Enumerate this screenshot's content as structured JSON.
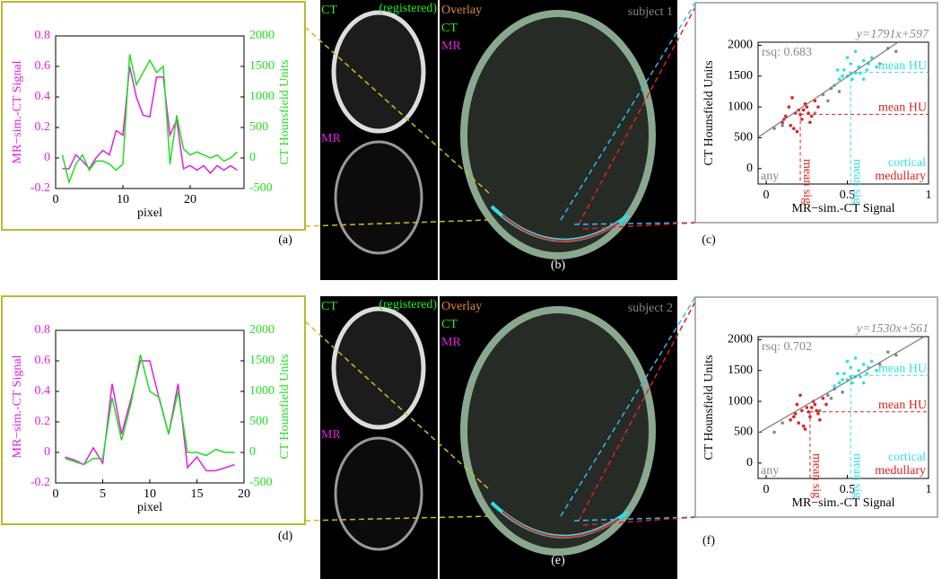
{
  "chart_data": [
    {
      "type": "line",
      "panel_label": "(a)",
      "x_label": "pixel",
      "y_label": "MR−sim.-CT Signal",
      "y2_label": "CT Hounsfield Units",
      "x": [
        1,
        2,
        3,
        4,
        5,
        6,
        7,
        8,
        9,
        10,
        11,
        12,
        13,
        14,
        15,
        16,
        17,
        18,
        19,
        20,
        21,
        22,
        23,
        24,
        25,
        26,
        27
      ],
      "xlim": [
        0,
        28
      ],
      "xticks": [
        0,
        10,
        20
      ],
      "ylim": [
        -0.2,
        0.8
      ],
      "yticks": [
        -0.2,
        0,
        0.2,
        0.4,
        0.6,
        0.8
      ],
      "y2lim": [
        -500,
        2000
      ],
      "y2ticks": [
        -500,
        0,
        500,
        1000,
        1500,
        2000
      ],
      "series": [
        {
          "color": "#e020e0",
          "values": [
            -0.07,
            -0.07,
            0.02,
            -0.02,
            -0.07,
            0.0,
            0.05,
            0.02,
            0.18,
            0.15,
            0.6,
            0.4,
            0.28,
            0.27,
            0.53,
            0.53,
            0.15,
            0.25,
            -0.07,
            -0.05,
            -0.08,
            -0.05,
            -0.1,
            -0.05,
            -0.08,
            -0.05,
            -0.08
          ]
        },
        {
          "color": "#22dd22",
          "axis": "y2",
          "values": [
            50,
            -400,
            -100,
            50,
            -200,
            -50,
            -50,
            -100,
            -200,
            -100,
            1700,
            1200,
            1400,
            1600,
            1400,
            1500,
            -100,
            700,
            150,
            50,
            100,
            50,
            0,
            50,
            -50,
            0,
            100
          ]
        }
      ]
    },
    {
      "type": "scatter",
      "panel_label": "(c)",
      "x_label": "MR−sim.-CT Signal",
      "y_label": "CT Hounsfield Units",
      "equation": "y=1791x+597",
      "rsq": "rsq: 0.683",
      "fit": {
        "slope": 1791,
        "intercept": 597
      },
      "xlim": [
        -0.05,
        1.0
      ],
      "xticks": [
        0,
        0.5,
        1
      ],
      "ylim": [
        -250,
        2050
      ],
      "yticks": [
        0,
        500,
        1000,
        1500,
        2000
      ],
      "series": [
        {
          "name": "cortical",
          "color": "#33dddd",
          "mean_hu": 1560,
          "mean_hu_label": "mean HU",
          "mean_sig": 0.52,
          "mean_sig_label": "mean sig",
          "x": [
            0.45,
            0.48,
            0.5,
            0.52,
            0.55,
            0.57,
            0.6,
            0.62,
            0.65,
            0.42,
            0.47,
            0.53,
            0.58,
            0.63,
            0.5,
            0.55,
            0.6,
            0.44,
            0.68,
            0.52
          ],
          "y": [
            1450,
            1600,
            1500,
            1700,
            1550,
            1650,
            1750,
            1600,
            1800,
            1350,
            1500,
            1450,
            1550,
            1700,
            1800,
            1900,
            1450,
            1600,
            1650,
            1550
          ]
        },
        {
          "name": "medullary",
          "color": "#dd2222",
          "mean_hu": 880,
          "mean_hu_label": "mean HU",
          "mean_sig": 0.21,
          "mean_sig_label": "mean sig",
          "x": [
            0.1,
            0.12,
            0.15,
            0.18,
            0.2,
            0.22,
            0.25,
            0.28,
            0.3,
            0.14,
            0.17,
            0.21,
            0.24,
            0.27,
            0.19,
            0.23,
            0.16,
            0.26,
            0.32,
            0.11
          ],
          "y": [
            750,
            850,
            700,
            900,
            950,
            800,
            1000,
            850,
            1100,
            1000,
            650,
            880,
            1050,
            750,
            600,
            950,
            1150,
            900,
            1000,
            800
          ]
        },
        {
          "name": "any",
          "color": "#888888",
          "x": [
            0.05,
            0.1,
            0.35,
            0.38,
            0.4,
            0.7,
            0.75,
            0.8,
            0.3,
            0.45
          ],
          "y": [
            650,
            700,
            1200,
            1100,
            1300,
            1700,
            1950,
            1900,
            900,
            1250
          ]
        }
      ]
    },
    {
      "type": "line",
      "panel_label": "(d)",
      "x_label": "pixel",
      "y_label": "MR−sim.-CT Signal",
      "y2_label": "CT Hounsfield Units",
      "x": [
        1,
        2,
        3,
        4,
        5,
        6,
        7,
        8,
        9,
        10,
        11,
        12,
        13,
        14,
        15,
        16,
        17,
        18,
        19
      ],
      "xlim": [
        0,
        20
      ],
      "xticks": [
        0,
        5,
        10,
        15,
        20
      ],
      "ylim": [
        -0.2,
        0.8
      ],
      "yticks": [
        -0.2,
        0,
        0.2,
        0.4,
        0.6,
        0.8
      ],
      "y2lim": [
        -500,
        2000
      ],
      "y2ticks": [
        -500,
        0,
        500,
        1000,
        1500,
        2000
      ],
      "series": [
        {
          "color": "#e020e0",
          "values": [
            -0.03,
            -0.05,
            -0.08,
            0.03,
            -0.07,
            0.45,
            0.12,
            0.35,
            0.6,
            0.6,
            0.35,
            0.12,
            0.45,
            -0.1,
            -0.03,
            -0.12,
            -0.12,
            -0.1,
            -0.08
          ]
        },
        {
          "color": "#22dd22",
          "axis": "y2",
          "values": [
            -100,
            -150,
            -200,
            -100,
            -100,
            900,
            200,
            800,
            1600,
            1000,
            900,
            300,
            1000,
            0,
            0,
            -50,
            50,
            0,
            0
          ]
        }
      ]
    },
    {
      "type": "scatter",
      "panel_label": "(f)",
      "x_label": "MR−sim.-CT Signal",
      "y_label": "CT Hounsfield Units",
      "equation": "y=1530x+561",
      "rsq": "rsq: 0.702",
      "fit": {
        "slope": 1530,
        "intercept": 561
      },
      "xlim": [
        -0.05,
        1.0
      ],
      "xticks": [
        0,
        0.5,
        1
      ],
      "ylim": [
        -250,
        2050
      ],
      "yticks": [
        0,
        500,
        1000,
        1500,
        2000
      ],
      "series": [
        {
          "name": "cortical",
          "color": "#33dddd",
          "mean_hu": 1420,
          "mean_hu_label": "mean HU",
          "mean_sig": 0.52,
          "mean_sig_label": "mean sig",
          "x": [
            0.45,
            0.48,
            0.5,
            0.52,
            0.55,
            0.57,
            0.6,
            0.62,
            0.65,
            0.42,
            0.47,
            0.53,
            0.58,
            0.63,
            0.5,
            0.55,
            0.6,
            0.44,
            0.68,
            0.52
          ],
          "y": [
            1300,
            1450,
            1350,
            1550,
            1400,
            1500,
            1600,
            1450,
            1650,
            1250,
            1350,
            1300,
            1400,
            1550,
            1650,
            1700,
            1300,
            1450,
            1500,
            1400
          ]
        },
        {
          "name": "medullary",
          "color": "#dd2222",
          "mean_hu": 830,
          "mean_hu_label": "mean HU",
          "mean_sig": 0.27,
          "mean_sig_label": "mean sig",
          "x": [
            0.15,
            0.18,
            0.2,
            0.22,
            0.25,
            0.27,
            0.3,
            0.32,
            0.35,
            0.19,
            0.23,
            0.26,
            0.29,
            0.33,
            0.24,
            0.28,
            0.21,
            0.31,
            0.37,
            0.17
          ],
          "y": [
            700,
            800,
            650,
            850,
            900,
            750,
            950,
            800,
            1050,
            950,
            600,
            830,
            1000,
            700,
            550,
            900,
            1100,
            850,
            950,
            750
          ]
        },
        {
          "name": "any",
          "color": "#888888",
          "x": [
            0.05,
            0.1,
            0.38,
            0.4,
            0.42,
            0.7,
            0.75,
            0.8,
            0.33,
            0.47
          ],
          "y": [
            500,
            650,
            1100,
            1050,
            1200,
            1600,
            1800,
            1750,
            850,
            1150
          ]
        }
      ]
    }
  ],
  "images": [
    {
      "ct_label": "CT",
      "registered": "(registered)",
      "mr_label": "MR",
      "overlay_title": "Overlay",
      "overlay_ct": "CT",
      "overlay_mr": "MR",
      "subject": "subject 1",
      "panel_label": "(b)"
    },
    {
      "ct_label": "CT",
      "registered": "(registered)",
      "mr_label": "MR",
      "overlay_title": "Overlay",
      "overlay_ct": "CT",
      "overlay_mr": "MR",
      "subject": "subject 2",
      "panel_label": "(e)"
    }
  ]
}
